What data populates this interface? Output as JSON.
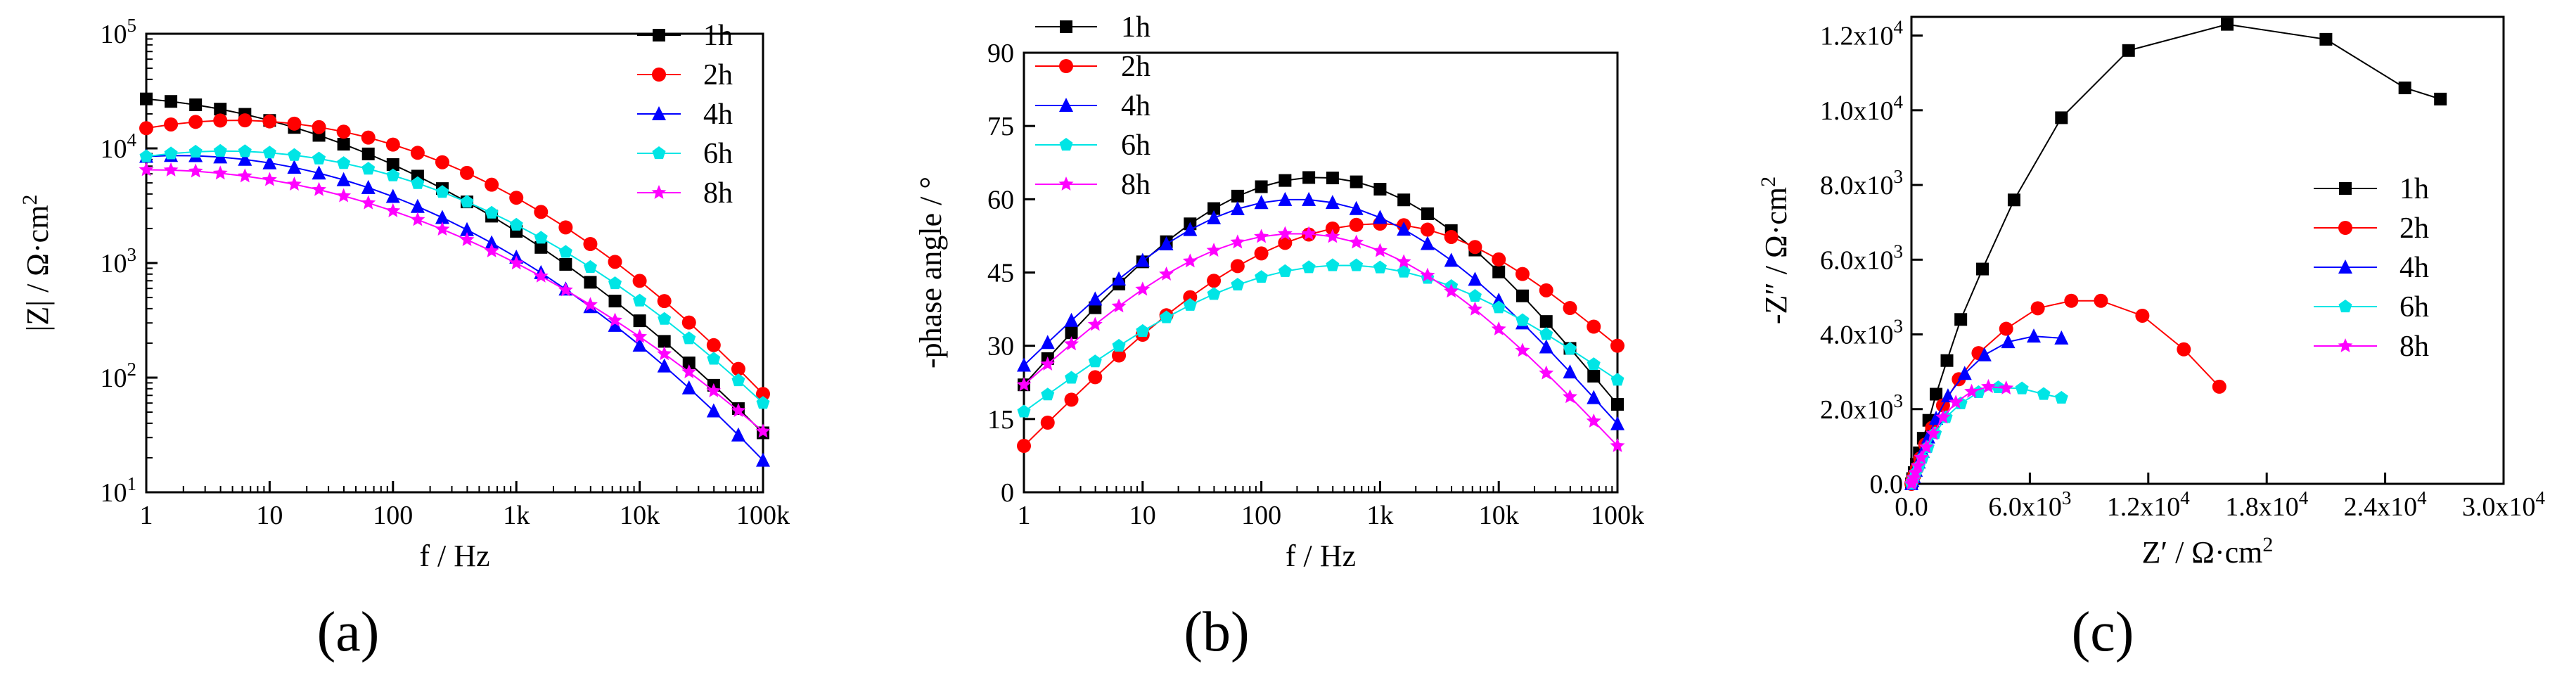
{
  "chart_data": [
    {
      "id": "a",
      "type": "line",
      "panel_label": "(a)",
      "xlabel": "f / Hz",
      "ylabel": "|Z| / Ω·cm",
      "ylabel_sup": "2",
      "x_scale": "log",
      "y_scale": "log",
      "xlim": [
        1,
        100000
      ],
      "ylim": [
        10,
        100000
      ],
      "x_ticks": [
        {
          "value": 1,
          "label": "1"
        },
        {
          "value": 10,
          "label": "10"
        },
        {
          "value": 100,
          "label": "100"
        },
        {
          "value": 1000,
          "label": "1k"
        },
        {
          "value": 10000,
          "label": "10k"
        },
        {
          "value": 100000,
          "label": "100k"
        }
      ],
      "y_ticks": [
        {
          "value": 10,
          "base": "10",
          "exp": "1"
        },
        {
          "value": 100,
          "base": "10",
          "exp": "2"
        },
        {
          "value": 1000,
          "base": "10",
          "exp": "3"
        },
        {
          "value": 10000,
          "base": "10",
          "exp": "4"
        },
        {
          "value": 100000,
          "base": "10",
          "exp": "5"
        }
      ],
      "legend": {
        "position": "top-right"
      },
      "series": [
        {
          "name": "1h",
          "color": "#000000",
          "marker": "square",
          "start": 27000,
          "end": 33,
          "mid": 2000
        },
        {
          "name": "2h",
          "color": "#ff0000",
          "marker": "circle",
          "start": 15000,
          "end": 72,
          "mid": 4000
        },
        {
          "name": "4h",
          "color": "#0000ff",
          "marker": "triangle",
          "start": 8500,
          "end": 19,
          "mid": 1200
        },
        {
          "name": "6h",
          "color": "#00e5e5",
          "marker": "pentagon",
          "start": 8500,
          "end": 60,
          "mid": 2300
        },
        {
          "name": "8h",
          "color": "#ff00ff",
          "marker": "star",
          "start": 6500,
          "end": 34,
          "mid": 1050
        }
      ]
    },
    {
      "id": "b",
      "type": "line",
      "panel_label": "(b)",
      "xlabel": "f / Hz",
      "ylabel": "-phase angle / °",
      "x_scale": "log",
      "xlim": [
        1,
        100000
      ],
      "ylim": [
        0,
        90
      ],
      "x_ticks": [
        {
          "value": 1,
          "label": "1"
        },
        {
          "value": 10,
          "label": "10"
        },
        {
          "value": 100,
          "label": "100"
        },
        {
          "value": 1000,
          "label": "1k"
        },
        {
          "value": 10000,
          "label": "10k"
        },
        {
          "value": 100000,
          "label": "100k"
        }
      ],
      "y_ticks": [
        0,
        15,
        30,
        45,
        60,
        75,
        90
      ],
      "legend": {
        "position": "top-left"
      },
      "series": [
        {
          "name": "1h",
          "color": "#000000",
          "marker": "square",
          "start": 22,
          "peak": 64.5,
          "peak_f": 300,
          "end": 18
        },
        {
          "name": "2h",
          "color": "#ff0000",
          "marker": "circle",
          "start": 9.5,
          "peak": 55,
          "peak_f": 1000,
          "end": 30
        },
        {
          "name": "4h",
          "color": "#0000ff",
          "marker": "triangle",
          "start": 26,
          "peak": 60,
          "peak_f": 200,
          "end": 14
        },
        {
          "name": "6h",
          "color": "#00e5e5",
          "marker": "pentagon",
          "start": 16.5,
          "peak": 46.5,
          "peak_f": 500,
          "end": 23
        },
        {
          "name": "8h",
          "color": "#ff00ff",
          "marker": "star",
          "start": 22,
          "peak": 53,
          "peak_f": 200,
          "end": 9.5
        }
      ]
    },
    {
      "id": "c",
      "type": "scatter",
      "panel_label": "(c)",
      "xlabel": "Z′ / Ω·cm",
      "xlabel_sup": "2",
      "ylabel": "-Z″ / Ω·cm",
      "ylabel_sup": "2",
      "xlim": [
        0,
        30000
      ],
      "ylim": [
        0,
        12500
      ],
      "x_ticks": [
        {
          "value": 0,
          "base": "0.0",
          "exp": ""
        },
        {
          "value": 6000,
          "base": "6.0x10",
          "exp": "3"
        },
        {
          "value": 12000,
          "base": "1.2x10",
          "exp": "4"
        },
        {
          "value": 18000,
          "base": "1.8x10",
          "exp": "4"
        },
        {
          "value": 24000,
          "base": "2.4x10",
          "exp": "4"
        },
        {
          "value": 30000,
          "base": "3.0x10",
          "exp": "4"
        }
      ],
      "y_ticks": [
        {
          "value": 0,
          "base": "0.0",
          "exp": ""
        },
        {
          "value": 2000,
          "base": "2.0x10",
          "exp": "3"
        },
        {
          "value": 4000,
          "base": "4.0x10",
          "exp": "3"
        },
        {
          "value": 6000,
          "base": "6.0x10",
          "exp": "3"
        },
        {
          "value": 8000,
          "base": "8.0x10",
          "exp": "3"
        },
        {
          "value": 10000,
          "base": "1.0x10",
          "exp": "4"
        },
        {
          "value": 12000,
          "base": "1.2x10",
          "exp": "4"
        }
      ],
      "legend": {
        "position": "center-right"
      },
      "series": [
        {
          "name": "1h",
          "color": "#000000",
          "marker": "square",
          "points": [
            [
              0,
              0
            ],
            [
              60,
              140
            ],
            [
              140,
              300
            ],
            [
              250,
              520
            ],
            [
              400,
              830
            ],
            [
              600,
              1220
            ],
            [
              880,
              1700
            ],
            [
              1250,
              2400
            ],
            [
              1800,
              3300
            ],
            [
              2500,
              4400
            ],
            [
              3600,
              5750
            ],
            [
              5200,
              7600
            ],
            [
              7600,
              9800
            ],
            [
              11000,
              11600
            ],
            [
              16000,
              12300
            ],
            [
              21000,
              11900
            ],
            [
              25000,
              10600
            ],
            [
              26800,
              10300
            ]
          ]
        },
        {
          "name": "2h",
          "color": "#ff0000",
          "marker": "circle",
          "points": [
            [
              0,
              0
            ],
            [
              60,
              100
            ],
            [
              150,
              230
            ],
            [
              280,
              420
            ],
            [
              450,
              680
            ],
            [
              700,
              1050
            ],
            [
              1050,
              1500
            ],
            [
              1600,
              2100
            ],
            [
              2400,
              2800
            ],
            [
              3400,
              3500
            ],
            [
              4800,
              4150
            ],
            [
              6400,
              4700
            ],
            [
              8100,
              4900
            ],
            [
              9600,
              4900
            ],
            [
              11700,
              4500
            ],
            [
              13800,
              3600
            ],
            [
              15600,
              2600
            ]
          ]
        },
        {
          "name": "4h",
          "color": "#0000ff",
          "marker": "triangle",
          "points": [
            [
              0,
              0
            ],
            [
              50,
              80
            ],
            [
              120,
              190
            ],
            [
              220,
              360
            ],
            [
              370,
              580
            ],
            [
              570,
              870
            ],
            [
              850,
              1250
            ],
            [
              1250,
              1750
            ],
            [
              1850,
              2350
            ],
            [
              2700,
              2950
            ],
            [
              3700,
              3450
            ],
            [
              4900,
              3800
            ],
            [
              6200,
              3950
            ],
            [
              7600,
              3900
            ]
          ]
        },
        {
          "name": "6h",
          "color": "#00e5e5",
          "marker": "pentagon",
          "points": [
            [
              0,
              0
            ],
            [
              50,
              60
            ],
            [
              120,
              150
            ],
            [
              220,
              290
            ],
            [
              370,
              460
            ],
            [
              560,
              690
            ],
            [
              830,
              980
            ],
            [
              1200,
              1350
            ],
            [
              1750,
              1780
            ],
            [
              2500,
              2150
            ],
            [
              3400,
              2450
            ],
            [
              4400,
              2580
            ],
            [
              5600,
              2550
            ],
            [
              6700,
              2400
            ],
            [
              7600,
              2300
            ]
          ]
        },
        {
          "name": "8h",
          "color": "#ff00ff",
          "marker": "star",
          "points": [
            [
              0,
              0
            ],
            [
              50,
              70
            ],
            [
              110,
              160
            ],
            [
              200,
              300
            ],
            [
              330,
              480
            ],
            [
              500,
              700
            ],
            [
              750,
              980
            ],
            [
              1100,
              1340
            ],
            [
              1600,
              1780
            ],
            [
              2250,
              2180
            ],
            [
              3050,
              2470
            ],
            [
              3900,
              2600
            ],
            [
              4800,
              2560
            ]
          ]
        }
      ]
    }
  ]
}
